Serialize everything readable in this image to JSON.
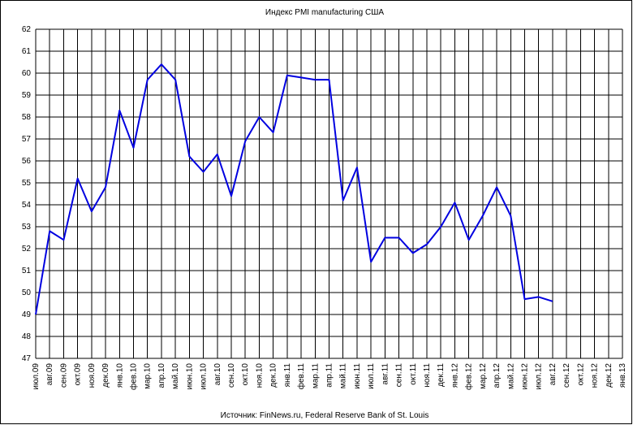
{
  "chart_data": {
    "type": "line",
    "title": "Индекс PMI manufacturing США",
    "source": "Источник: FinNews.ru, Federal Reserve Bank of St. Louis",
    "categories": [
      "июл.09",
      "авг.09",
      "сен.09",
      "окт.09",
      "ноя.09",
      "дек.09",
      "янв.10",
      "фев.10",
      "мар.10",
      "апр.10",
      "май.10",
      "июн.10",
      "июл.10",
      "авг.10",
      "сен.10",
      "окт.10",
      "ноя.10",
      "дек.10",
      "янв.11",
      "фев.11",
      "мар.11",
      "апр.11",
      "май.11",
      "июн.11",
      "июл.11",
      "авг.11",
      "сен.11",
      "окт.11",
      "ноя.11",
      "дек.11",
      "янв.12",
      "фев.12",
      "мар.12",
      "апр.12",
      "май.12",
      "июн.12",
      "июл.12",
      "авг.12",
      "сен.12",
      "окт.12",
      "ноя.12",
      "дек.12",
      "янв.13"
    ],
    "series": [
      {
        "name": "PMI",
        "color": "#0000e0",
        "values": [
          49.0,
          52.8,
          52.4,
          55.2,
          53.7,
          54.8,
          58.3,
          56.6,
          59.7,
          60.4,
          59.7,
          56.2,
          55.5,
          56.3,
          54.4,
          56.9,
          58.0,
          57.3,
          59.9,
          59.8,
          59.7,
          59.7,
          54.2,
          55.7,
          51.4,
          52.5,
          52.5,
          51.8,
          52.2,
          53.0,
          54.1,
          52.4,
          53.5,
          54.8,
          53.5,
          49.7,
          49.8,
          49.6,
          null,
          null,
          null,
          null,
          null
        ]
      }
    ],
    "ylim": [
      47,
      62
    ],
    "yticks": [
      47,
      48,
      49,
      50,
      51,
      52,
      53,
      54,
      55,
      56,
      57,
      58,
      59,
      60,
      61,
      62
    ],
    "grid": true
  }
}
